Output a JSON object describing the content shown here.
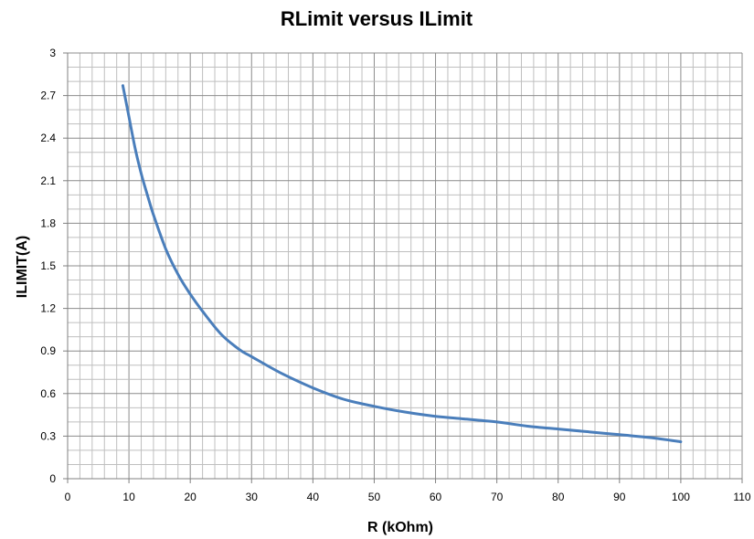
{
  "chart_data": {
    "type": "line",
    "title": "RLimit versus ILimit",
    "xlabel": "R (kOhm)",
    "ylabel": "ILIMIT(A)",
    "xlim": [
      0,
      110
    ],
    "ylim": [
      0,
      3
    ],
    "x_ticks": [
      "0",
      "10",
      "20",
      "30",
      "40",
      "50",
      "60",
      "70",
      "80",
      "90",
      "100",
      "110"
    ],
    "y_ticks": [
      "0",
      "0.3",
      "0.6",
      "0.9",
      "1.2",
      "1.5",
      "1.8",
      "2.1",
      "2.4",
      "2.7",
      "3"
    ],
    "x_tick_values": [
      0,
      10,
      20,
      30,
      40,
      50,
      60,
      70,
      80,
      90,
      100,
      110
    ],
    "y_tick_values": [
      0,
      0.3,
      0.6,
      0.9,
      1.2,
      1.5,
      1.8,
      2.1,
      2.4,
      2.7,
      3
    ],
    "x_minor_step": 2,
    "y_minor_step": 0.1,
    "grid": true,
    "legend": "none",
    "series": [
      {
        "color": "#4a7ebb",
        "x": [
          9,
          10,
          11,
          12,
          13,
          14,
          16,
          18,
          20,
          22,
          25,
          28,
          30,
          35,
          40,
          45,
          50,
          55,
          60,
          65,
          70,
          75,
          80,
          85,
          90,
          95,
          100
        ],
        "y": [
          2.77,
          2.55,
          2.33,
          2.15,
          2.0,
          1.86,
          1.62,
          1.44,
          1.3,
          1.18,
          1.02,
          0.91,
          0.86,
          0.74,
          0.64,
          0.56,
          0.51,
          0.47,
          0.44,
          0.42,
          0.4,
          0.37,
          0.35,
          0.33,
          0.31,
          0.29,
          0.26
        ]
      }
    ]
  }
}
